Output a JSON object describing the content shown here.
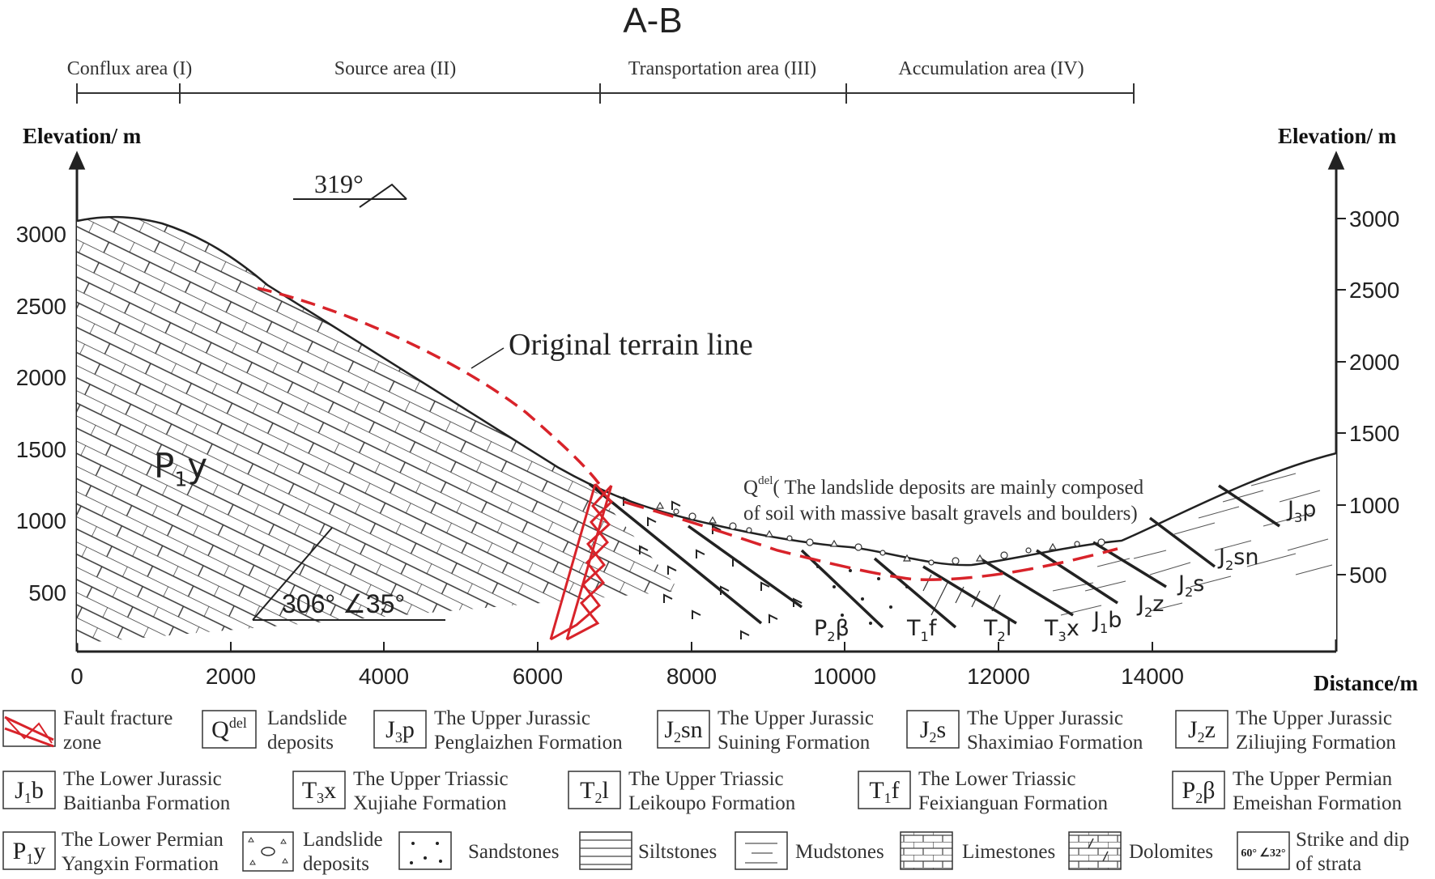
{
  "title": "A-B",
  "zones": [
    {
      "label": "Conflux area (I)"
    },
    {
      "label": "Source area (II)"
    },
    {
      "label": "Transportation area (III)"
    },
    {
      "label": "Accumulation area (IV)"
    }
  ],
  "axes": {
    "y_left_label": "Elevation/ m",
    "y_right_label": "Elevation/ m",
    "x_label": "Distance/m",
    "y_left_ticks": [
      "3000",
      "2500",
      "2000",
      "1500",
      "1000",
      "500"
    ],
    "y_right_ticks": [
      "3000",
      "2500",
      "2000",
      "1500",
      "1000",
      "500"
    ],
    "x_ticks": [
      "0",
      "2000",
      "4000",
      "6000",
      "8000",
      "10000",
      "12000",
      "14000"
    ]
  },
  "annotations": {
    "strike_top": "319°",
    "dip_bottom": "306°  ∠35°",
    "original_terrain": "Original terrain line",
    "qdel_main": "Q",
    "qdel_sup": "del",
    "qdel_line1": "( The landslide deposits are mainly composed",
    "qdel_line2": "of soil with massive basalt gravels and boulders)"
  },
  "formation_labels": {
    "p1y": [
      "P",
      "1",
      "y"
    ],
    "p2b": [
      "P",
      "2",
      "β"
    ],
    "t1f": [
      "T",
      "1",
      "f"
    ],
    "t2l": [
      "T",
      "2",
      "l"
    ],
    "t3x": [
      "T",
      "3",
      "x"
    ],
    "j1b": [
      "J",
      "1",
      "b"
    ],
    "j2z": [
      "J",
      "2",
      "z"
    ],
    "j2s": [
      "J",
      "2",
      "s"
    ],
    "j2sn": [
      "J",
      "2",
      "sn"
    ],
    "j3p": [
      "J",
      "3",
      "p"
    ]
  },
  "legend": {
    "fault": [
      "Fault fracture",
      "zone"
    ],
    "qdel": {
      "sym": "Q",
      "sup": "del",
      "text": [
        "Landslide",
        "deposits"
      ]
    },
    "j3p": {
      "sym": "J",
      "sub": "3",
      "tail": "p",
      "text": [
        "The Upper Jurassic",
        "Penglaizhen Formation"
      ]
    },
    "j2sn": {
      "sym": "J",
      "sub": "2",
      "tail": "sn",
      "text": [
        "The Upper Jurassic",
        "Suining Formation"
      ]
    },
    "j2s": {
      "sym": "J",
      "sub": "2",
      "tail": "s",
      "text": [
        "The Upper Jurassic",
        "Shaximiao Formation"
      ]
    },
    "j2z": {
      "sym": "J",
      "sub": "2",
      "tail": "z",
      "text": [
        "The Upper Jurassic",
        "Ziliujing Formation"
      ]
    },
    "j1b": {
      "sym": "J",
      "sub": "1",
      "tail": "b",
      "text": [
        "The Lower Jurassic",
        "Baitianba Formation"
      ]
    },
    "t3x": {
      "sym": "T",
      "sub": "3",
      "tail": "x",
      "text": [
        "The Upper Triassic",
        "Xujiahe Formation"
      ]
    },
    "t2l": {
      "sym": "T",
      "sub": "2",
      "tail": "l",
      "text": [
        "The Upper Triassic",
        "Leikoupo Formation"
      ]
    },
    "t1f": {
      "sym": "T",
      "sub": "1",
      "tail": "f",
      "text": [
        "The Lower Triassic",
        "Feixianguan Formation"
      ]
    },
    "p2b": {
      "sym": "P",
      "sub": "2",
      "tail": "β",
      "text": [
        "The Upper Permian",
        "Emeishan Formation"
      ]
    },
    "p1y": {
      "sym": "P",
      "sub": "1",
      "tail": "y",
      "text": [
        "The Lower Permian",
        "Yangxin Formation"
      ]
    },
    "landslide": [
      "Landslide",
      "deposits"
    ],
    "sandstones": "Sandstones",
    "siltstones": "Siltstones",
    "mudstones": "Mudstones",
    "limestones": "Limestones",
    "dolomites": "Dolomites",
    "strike_sym": "60°  ∠32°",
    "strike": [
      "Strike and dip",
      "of strata"
    ]
  }
}
